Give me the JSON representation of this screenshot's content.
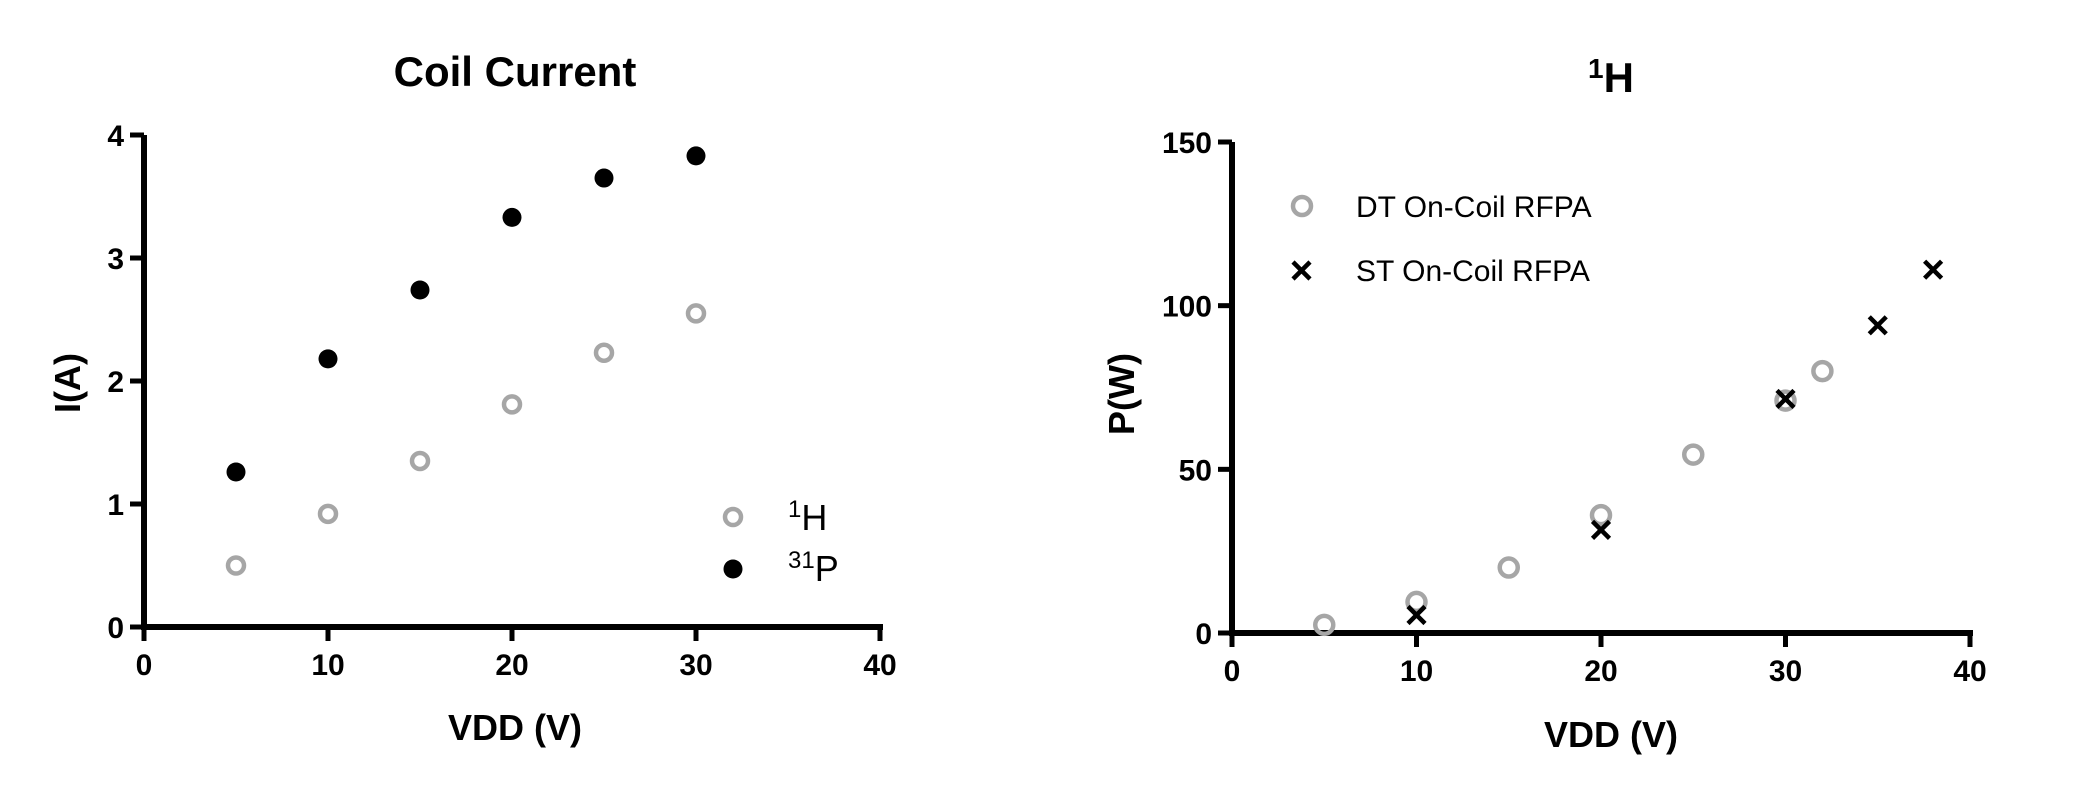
{
  "chart_data": [
    {
      "type": "scatter",
      "title": "Coil Current",
      "xlabel": "VDD (V)",
      "ylabel": "I(A)",
      "xlim": [
        0,
        40
      ],
      "ylim": [
        0,
        4
      ],
      "xticks": [
        "0",
        "10",
        "20",
        "30",
        "40"
      ],
      "yticks": [
        "0",
        "1",
        "2",
        "3",
        "4"
      ],
      "grid": false,
      "legend_position": "bottom-right",
      "series": [
        {
          "name_sup": "1",
          "name_main": "H",
          "marker": "open-circle",
          "color": "#a6a6a6",
          "points": [
            [
              5,
              0.5
            ],
            [
              10,
              0.92
            ],
            [
              15,
              1.35
            ],
            [
              20,
              1.81
            ],
            [
              25,
              2.23
            ],
            [
              30,
              2.55
            ]
          ]
        },
        {
          "name_sup": "31",
          "name_main": "P",
          "marker": "filled-circle",
          "color": "#000000",
          "points": [
            [
              5,
              1.26
            ],
            [
              10,
              2.18
            ],
            [
              15,
              2.74
            ],
            [
              20,
              3.33
            ],
            [
              25,
              3.65
            ],
            [
              30,
              3.83
            ]
          ]
        }
      ]
    },
    {
      "type": "scatter",
      "title_sup": "1",
      "title_main": "H",
      "xlabel": "VDD (V)",
      "ylabel": "P(W)",
      "xlim": [
        0,
        40
      ],
      "ylim": [
        0,
        150
      ],
      "xticks": [
        "0",
        "10",
        "20",
        "30",
        "40"
      ],
      "yticks": [
        "0",
        "50",
        "100",
        "150"
      ],
      "grid": false,
      "legend_position": "top-left",
      "series": [
        {
          "name": "DT On-Coil RFPA",
          "marker": "open-circle",
          "color": "#a6a6a6",
          "points": [
            [
              5,
              2.5
            ],
            [
              10,
              9.5
            ],
            [
              15,
              20
            ],
            [
              20,
              36
            ],
            [
              25,
              54.5
            ],
            [
              30,
              71
            ],
            [
              32,
              80
            ]
          ]
        },
        {
          "name": "ST On-Coil RFPA",
          "marker": "x",
          "color": "#000000",
          "points": [
            [
              10,
              5.5
            ],
            [
              20,
              31.5
            ],
            [
              30,
              71.5
            ],
            [
              35,
              94
            ],
            [
              38,
              111
            ]
          ]
        }
      ]
    }
  ]
}
